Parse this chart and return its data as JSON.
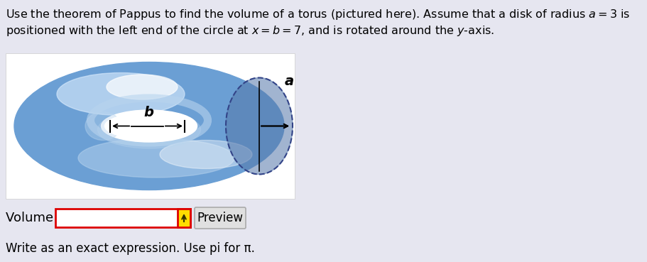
{
  "bg_color": "#e6e6f0",
  "title_line1": "Use the theorem of Pappus to find the volume of a torus (pictured here). Assume that a disk of radius $a = 3$ is",
  "title_line2": "positioned with the left end of the circle at $x = b = 7$, and is rotated around the $y$-axis.",
  "volume_label": "Volume = ",
  "preview_label": "Preview",
  "bottom_note": "Write as an exact expression. Use pi for π.",
  "input_box_color": "#ffffff",
  "input_border_color": "#dd0000",
  "arrow_color_b": "#ffcc00",
  "b_label": "b",
  "a_label": "a",
  "font_size_title": 11.5,
  "font_size_label": 11.5,
  "torus_outer_color": "#6b9fd4",
  "torus_light_color": "#b8d4ee",
  "torus_highlight": "#ddeeff",
  "torus_dark": "#4a7ab5",
  "disk_edge_color": "#4466aa",
  "disk_fill_color": "#5577aa"
}
